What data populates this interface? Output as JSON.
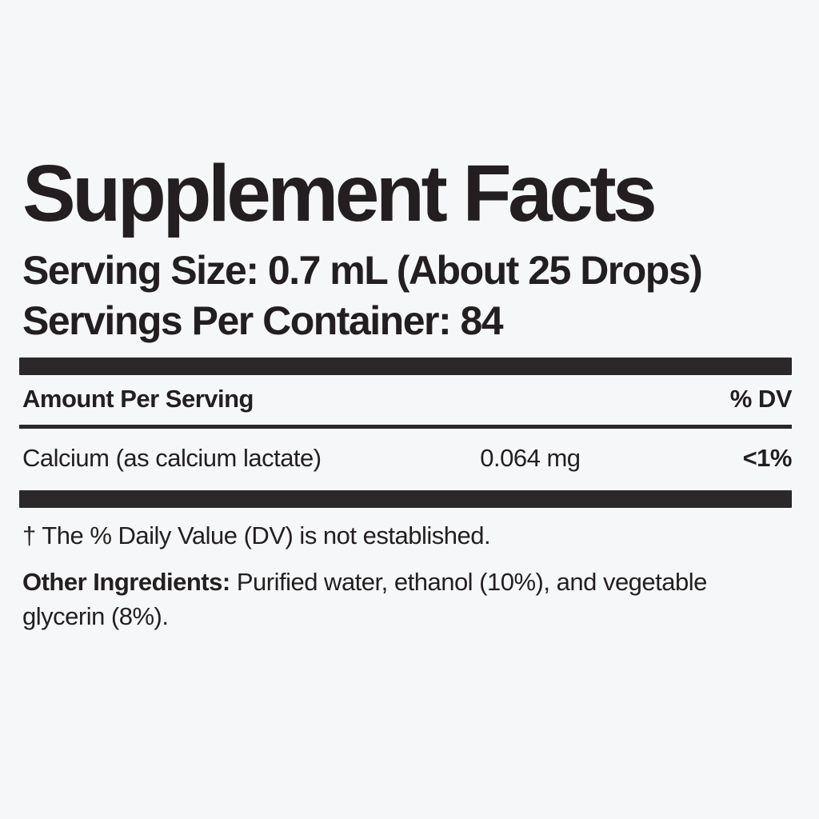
{
  "colors": {
    "background": "#f6f7f8",
    "text": "#231f20",
    "bar": "#2b282a"
  },
  "label": {
    "title": "Supplement Facts",
    "serving_size": "Serving Size: 0.7 mL (About 25 Drops)",
    "servings_per_container": "Servings Per Container: 84",
    "header": {
      "amount_col": "Amount Per Serving",
      "dv_col": "% DV"
    },
    "nutrients": [
      {
        "name": "Calcium (as calcium lactate)",
        "amount": "0.064 mg",
        "dv": "<1%"
      }
    ],
    "footnote": "† The % Daily Value (DV) is not established.",
    "other_ingredients": {
      "label": "Other Ingredients:",
      "text": "Purified water, ethanol (10%), and vegetable glycerin (8%)."
    }
  }
}
